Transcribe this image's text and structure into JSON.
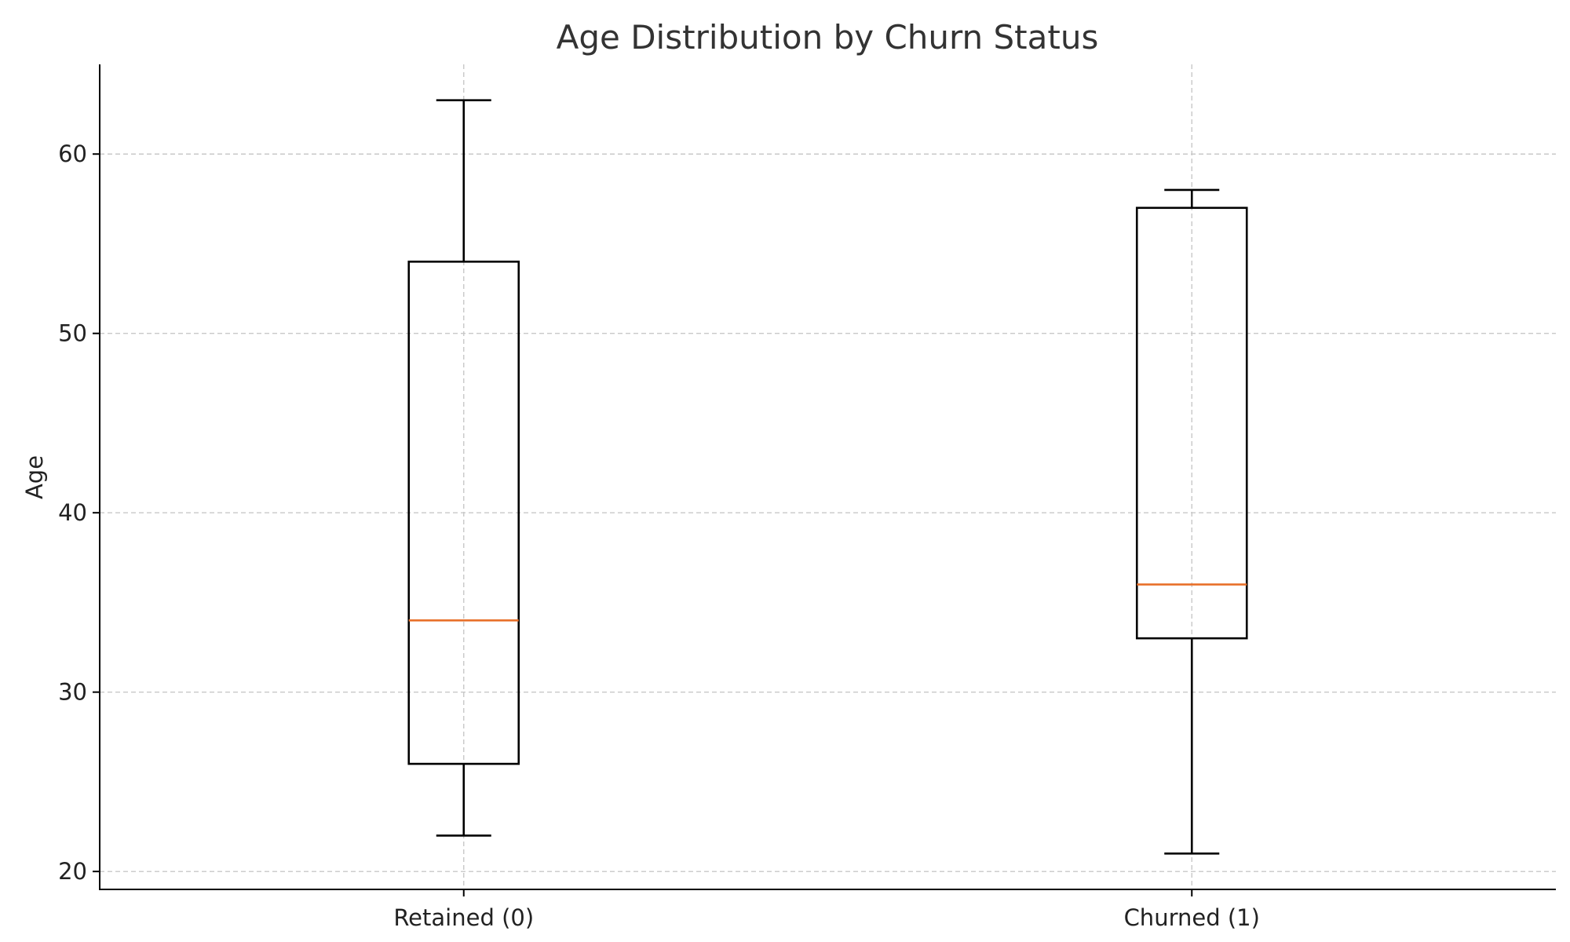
{
  "chart_data": {
    "type": "box",
    "title": "Age Distribution by Churn Status",
    "xlabel": "",
    "ylabel": "Age",
    "categories": [
      "Retained (0)",
      "Churned (1)"
    ],
    "boxes": [
      {
        "category": "Retained (0)",
        "whisker_low": 22,
        "q1": 26,
        "median": 34,
        "q3": 54,
        "whisker_high": 63
      },
      {
        "category": "Churned (1)",
        "whisker_low": 21,
        "q1": 33,
        "median": 36,
        "q3": 57,
        "whisker_high": 58
      }
    ],
    "ylim": [
      19,
      65
    ],
    "yticks": [
      20,
      30,
      40,
      50,
      60
    ],
    "grid": true,
    "colors": {
      "box": "#000000",
      "median": "#e8702a",
      "grid": "#c8c8c8"
    }
  }
}
